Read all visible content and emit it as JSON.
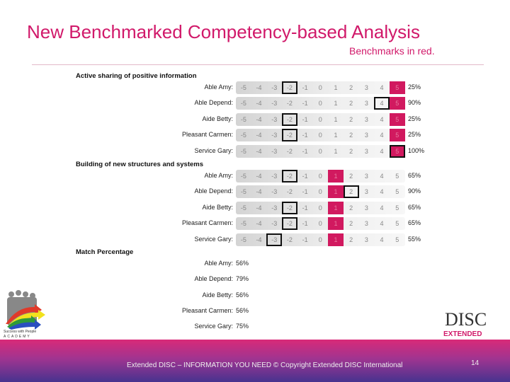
{
  "header": {
    "title": "New Benchmarked Competency-based Analysis",
    "subtitle": "Benchmarks in red."
  },
  "scale_labels": [
    "-5",
    "-4",
    "-3",
    "-2",
    "-1",
    "0",
    "1",
    "2",
    "3",
    "4",
    "5"
  ],
  "colors": {
    "accent": "#d1196a",
    "benchmark": "#d1195f"
  },
  "sections": [
    {
      "title": "Active sharing of positive information",
      "benchmark": "5",
      "rows": [
        {
          "name": "Able Amy:",
          "selected": "-2",
          "match": "25%"
        },
        {
          "name": "Able Depend:",
          "selected": "4",
          "match": "90%"
        },
        {
          "name": "Aide Betty:",
          "selected": "-2",
          "match": "25%"
        },
        {
          "name": "Pleasant Carmen:",
          "selected": "-2",
          "match": "25%"
        },
        {
          "name": "Service Gary:",
          "selected": "5",
          "match": "100%"
        }
      ]
    },
    {
      "title": "Building of new structures and systems",
      "benchmark": "1",
      "rows": [
        {
          "name": "Able Amy:",
          "selected": "-2",
          "match": "65%"
        },
        {
          "name": "Able Depend:",
          "selected": "2",
          "match": "90%"
        },
        {
          "name": "Aide Betty:",
          "selected": "-2",
          "match": "65%"
        },
        {
          "name": "Pleasant Carmen:",
          "selected": "-2",
          "match": "65%"
        },
        {
          "name": "Service Gary:",
          "selected": "-3",
          "match": "55%"
        }
      ]
    }
  ],
  "match": {
    "title": "Match Percentage",
    "rows": [
      {
        "name": "Able Amy:",
        "value": "56%"
      },
      {
        "name": "Able Depend:",
        "value": "79%"
      },
      {
        "name": "Aide Betty:",
        "value": "56%"
      },
      {
        "name": "Pleasant Carmen:",
        "value": "56%"
      },
      {
        "name": "Service Gary:",
        "value": "75%"
      }
    ]
  },
  "logos": {
    "left": "Success with People ACADEMY",
    "right": "EXTENDED DISC"
  },
  "footer": {
    "text": "Extended DISC – INFORMATION YOU NEED  © Copyright Extended DISC International",
    "page": "14"
  }
}
